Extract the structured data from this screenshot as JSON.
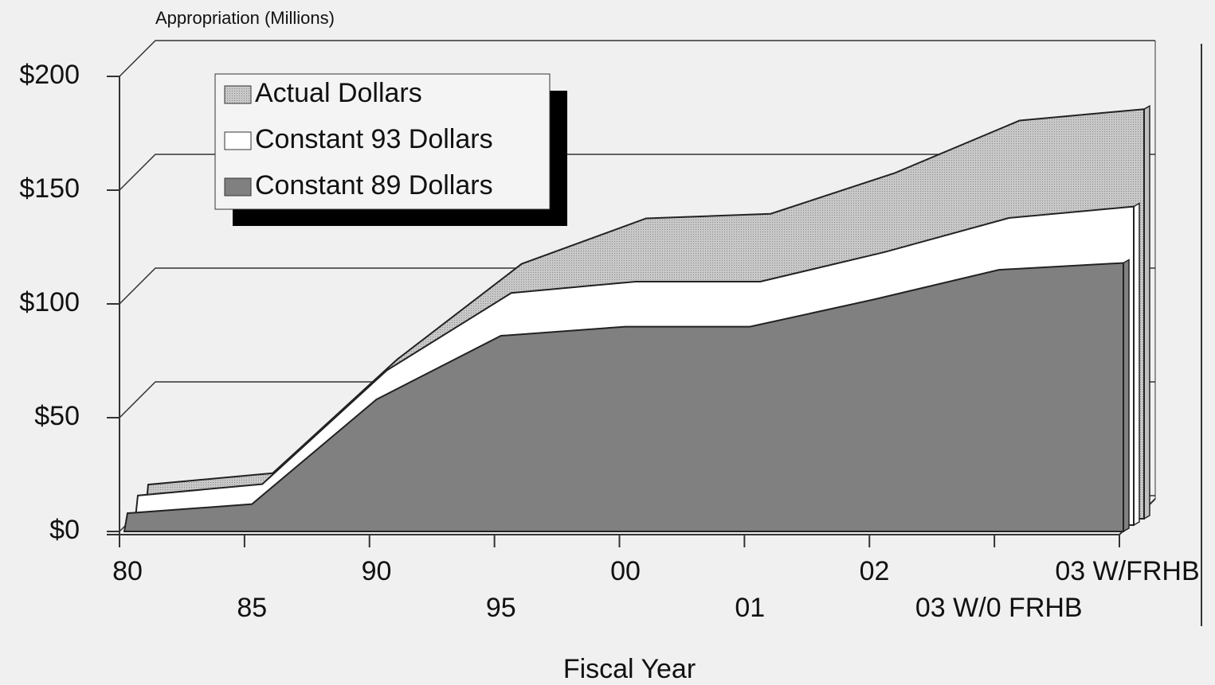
{
  "chart_data": {
    "type": "area",
    "axis_label_top": "Appropriation (Millions)",
    "x_label": "Fiscal Year",
    "categories": [
      "80",
      "85",
      "90",
      "95",
      "00",
      "01",
      "02",
      "03 W/0 FRHB",
      "03 W/FRHB"
    ],
    "series": [
      {
        "name": "Actual Dollars",
        "color": "#c0c0c0",
        "values": [
          15,
          20,
          70,
          112,
          132,
          134,
          152,
          175,
          180
        ]
      },
      {
        "name": "Constant 93 Dollars",
        "color": "#ffffff",
        "values": [
          13,
          18,
          68,
          102,
          107,
          107,
          120,
          135,
          140
        ]
      },
      {
        "name": "Constant 89 Dollars",
        "color": "#808080",
        "values": [
          8,
          12,
          58,
          86,
          90,
          90,
          102,
          115,
          118
        ]
      }
    ],
    "ylim": [
      0,
      200
    ],
    "yticks": [
      {
        "value": 0,
        "label": "$0"
      },
      {
        "value": 50,
        "label": "$50"
      },
      {
        "value": 100,
        "label": "$100"
      },
      {
        "value": 150,
        "label": "$150"
      },
      {
        "value": 200,
        "label": "$200"
      }
    ],
    "grid": true
  }
}
